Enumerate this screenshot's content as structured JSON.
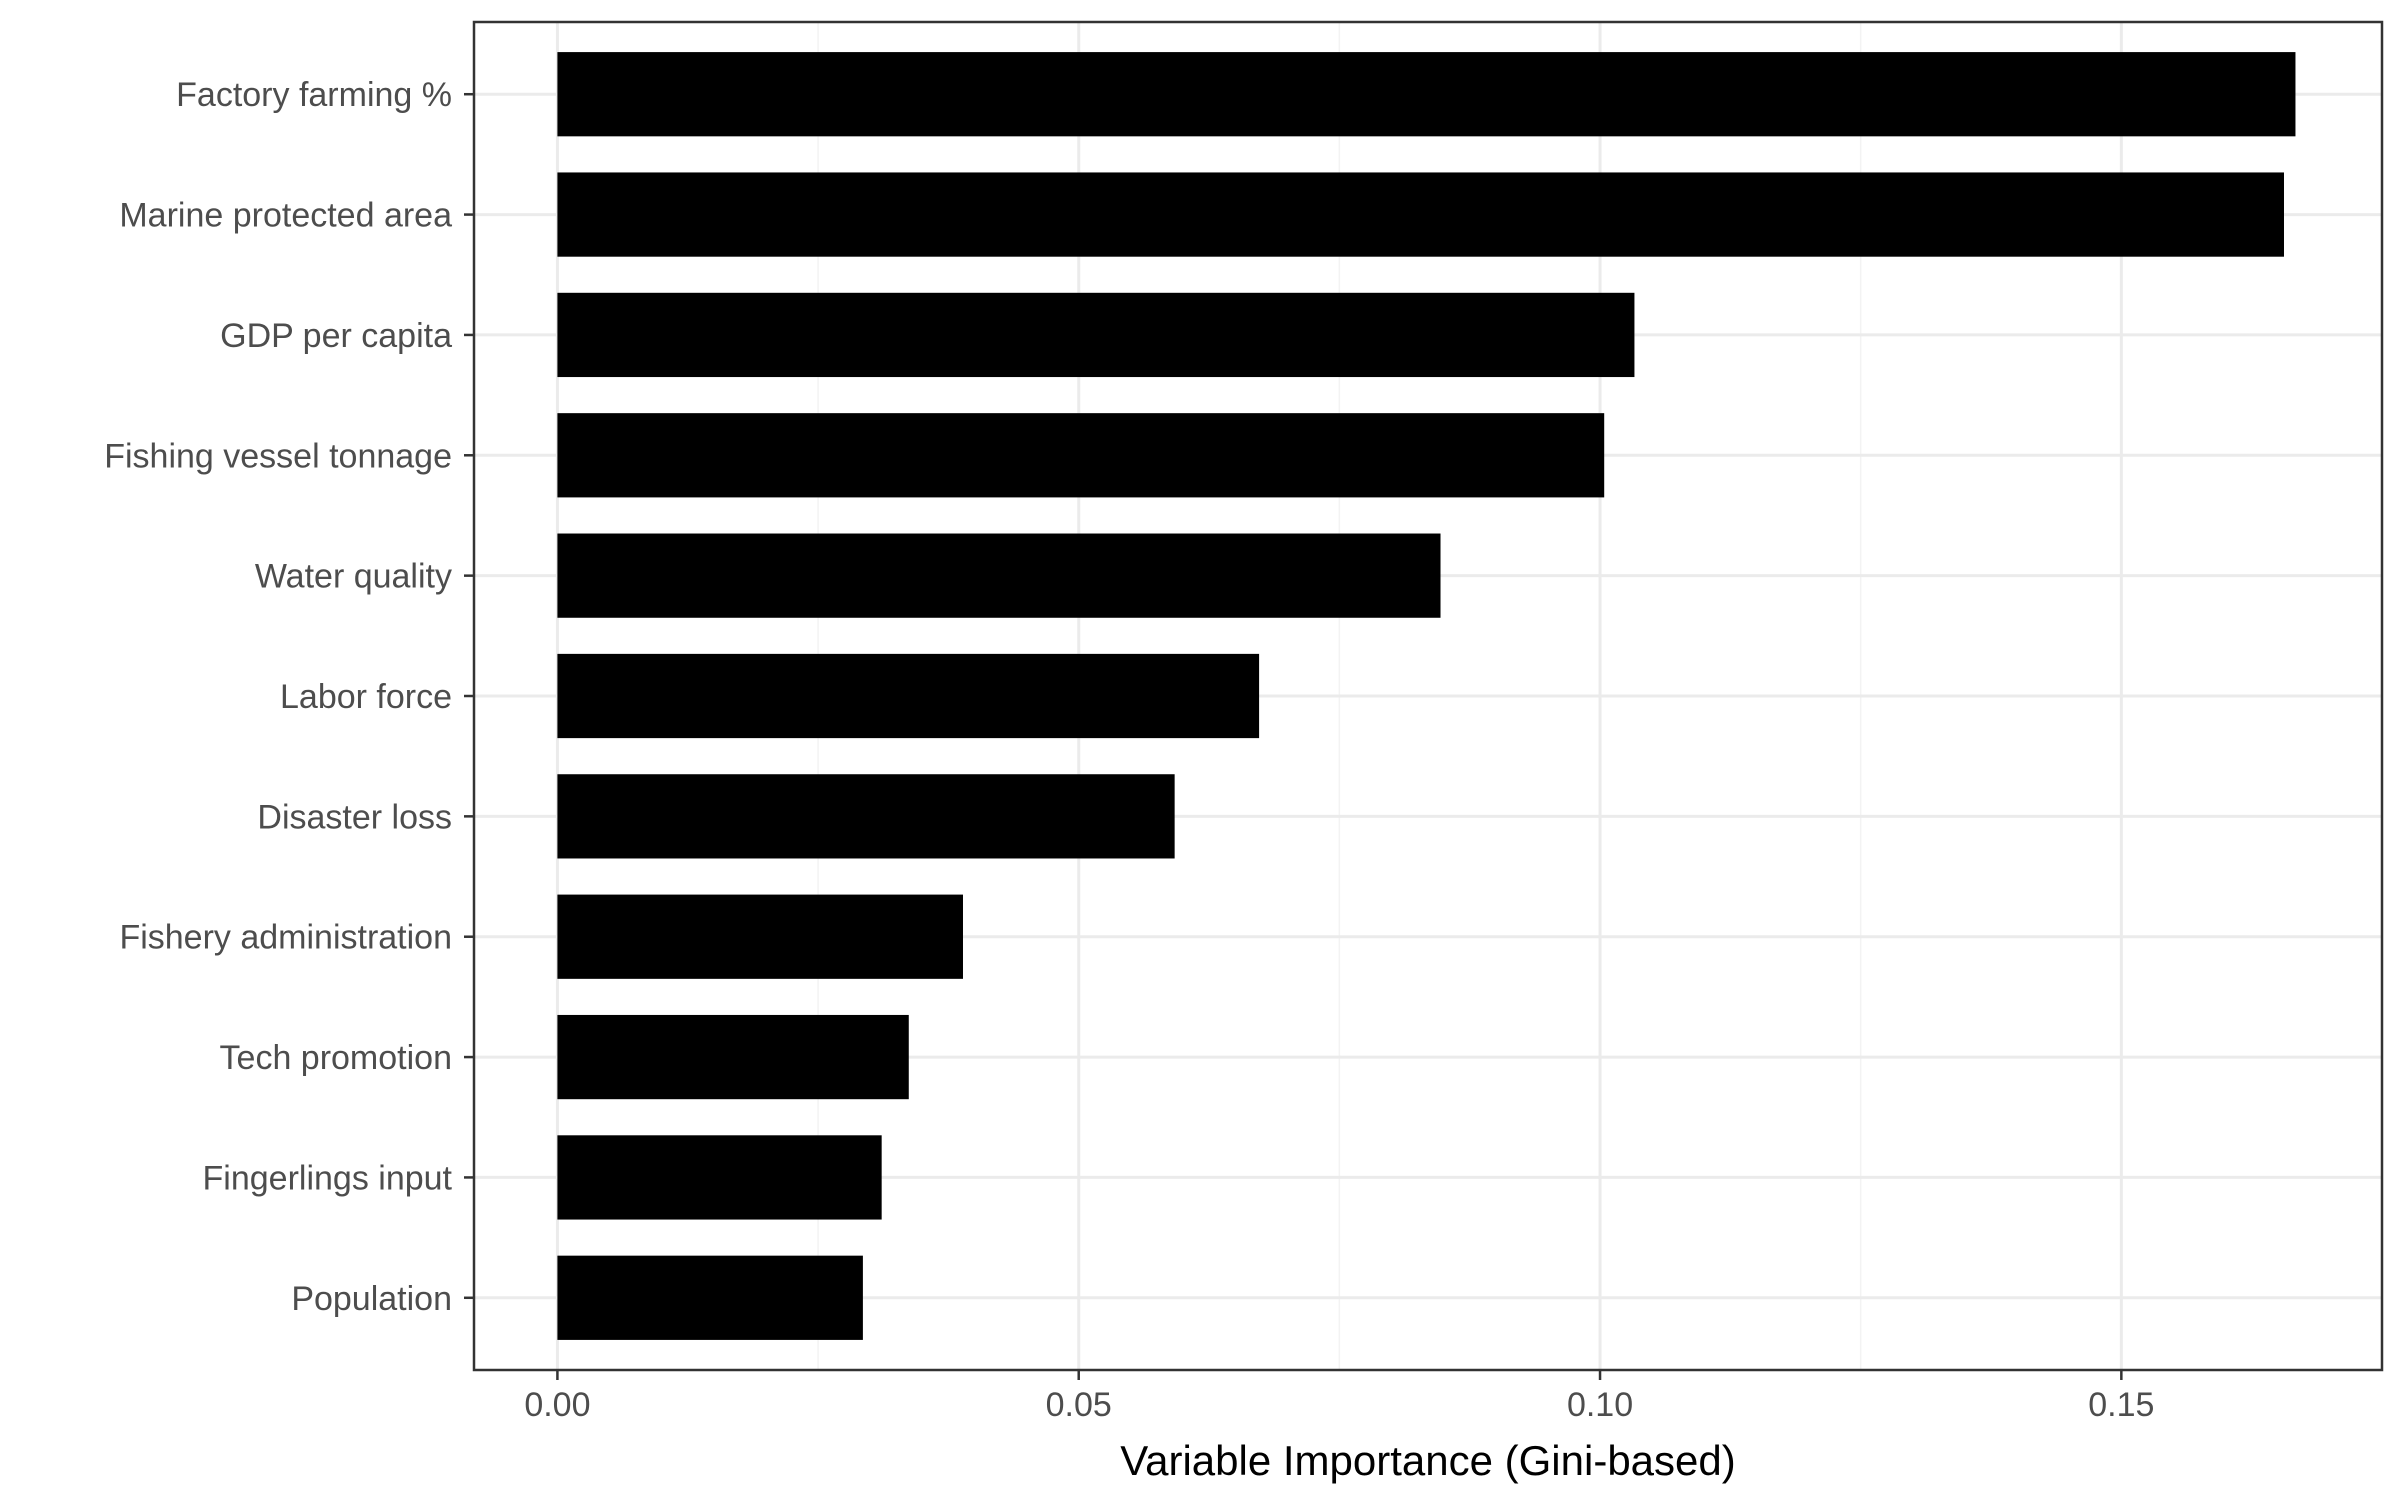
{
  "chart_data": {
    "type": "bar",
    "orientation": "horizontal",
    "categories": [
      "Factory farming %",
      "Marine protected area",
      "GDP per capita",
      "Fishing vessel tonnage",
      "Water quality",
      "Labor force",
      "Disaster loss",
      "Fishery administration",
      "Tech promotion",
      "Fingerlings input",
      "Population"
    ],
    "values": [
      0.1667,
      0.1656,
      0.1033,
      0.1004,
      0.0847,
      0.0673,
      0.0592,
      0.0389,
      0.0337,
      0.0311,
      0.0293
    ],
    "title": "",
    "xlabel": "Variable Importance (Gini-based)",
    "ylabel": "",
    "xlim": [
      -0.008,
      0.175
    ],
    "xticks": [
      0.0,
      0.05,
      0.1,
      0.15
    ],
    "xtick_labels": [
      "0.00",
      "0.05",
      "0.10",
      "0.15"
    ],
    "grid": true,
    "legend": "none",
    "colors": {
      "bar": "#000000",
      "grid_major": "#ebebeb",
      "grid_minor": "#f3f3f3",
      "panel_border": "#333333",
      "tick_text": "#4d4d4d",
      "background": "#ffffff"
    }
  }
}
